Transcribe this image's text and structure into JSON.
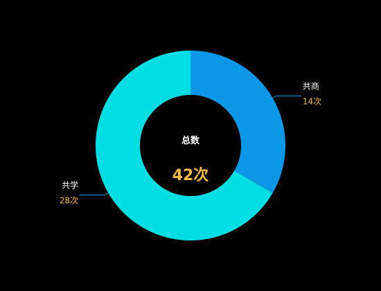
{
  "chart_data": {
    "type": "pie",
    "donut": true,
    "categories": [
      "共商",
      "共学"
    ],
    "values": [
      14,
      28
    ],
    "value_labels": [
      "14次",
      "28次"
    ],
    "colors": [
      "#0a97e8",
      "#00dde3"
    ],
    "center_title": "总数",
    "center_value": "42次",
    "label_color": "#f5b942",
    "legend": "none"
  }
}
